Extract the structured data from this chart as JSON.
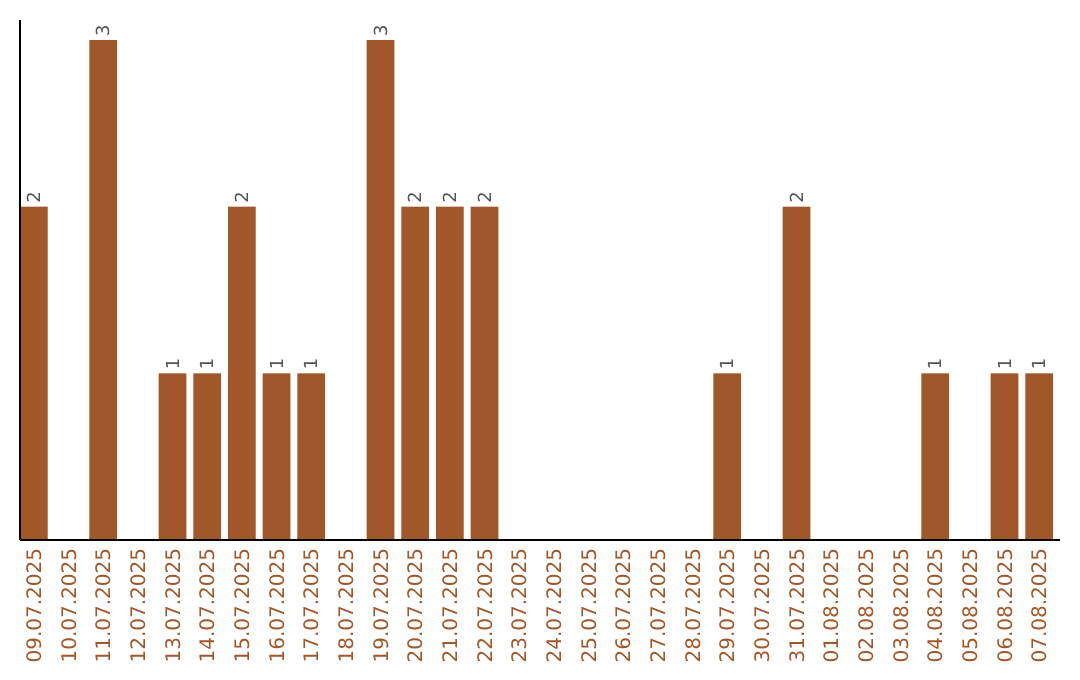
{
  "chart_data": {
    "type": "bar",
    "categories": [
      "09.07.2025",
      "10.07.2025",
      "11.07.2025",
      "12.07.2025",
      "13.07.2025",
      "14.07.2025",
      "15.07.2025",
      "16.07.2025",
      "17.07.2025",
      "18.07.2025",
      "19.07.2025",
      "20.07.2025",
      "21.07.2025",
      "22.07.2025",
      "23.07.2025",
      "24.07.2025",
      "25.07.2025",
      "26.07.2025",
      "27.07.2025",
      "28.07.2025",
      "29.07.2025",
      "30.07.2025",
      "31.07.2025",
      "01.08.2025",
      "02.08.2025",
      "03.08.2025",
      "04.08.2025",
      "05.08.2025",
      "06.08.2025",
      "07.08.2025"
    ],
    "values": [
      2,
      0,
      3,
      0,
      1,
      1,
      2,
      1,
      1,
      0,
      3,
      2,
      2,
      2,
      0,
      0,
      0,
      0,
      0,
      0,
      1,
      0,
      2,
      0,
      0,
      0,
      1,
      0,
      1,
      1
    ],
    "value_labels": [
      "2",
      null,
      "3",
      null,
      "1",
      "1",
      "2",
      "1",
      "1",
      null,
      "3",
      "2",
      "2",
      "2",
      null,
      null,
      null,
      null,
      null,
      null,
      "1",
      null,
      "2",
      null,
      null,
      null,
      "1",
      null,
      "1",
      "1"
    ],
    "color": "#a0582a"
  }
}
